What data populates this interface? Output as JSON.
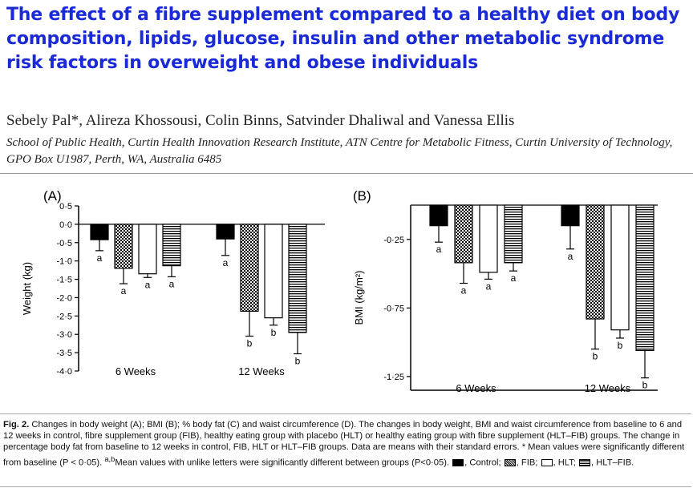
{
  "paper": {
    "title": "The effect of a fibre supplement compared to a healthy diet on body composition, lipids, glucose, insulin and other metabolic syndrome risk factors in overweight and obese individuals",
    "authors": "Sebely Pal*, Alireza Khossousi, Colin Binns, Satvinder Dhaliwal and Vanessa Ellis",
    "affiliation": "School of Public Health, Curtin Health Innovation Research Institute, ATN Centre for Metabolic Fitness, Curtin University of Technology, GPO Box U1987, Perth, WA, Australia 6485"
  },
  "colors": {
    "title": "#1a2ad6",
    "bar_outline": "#000000"
  },
  "chart_data": [
    {
      "panel_label": "(A)",
      "type": "bar",
      "ylabel": "Weight (kg)",
      "xlabel": "",
      "categories": [
        "6 Weeks",
        "12 Weeks"
      ],
      "ylim": [
        -4.0,
        0.5
      ],
      "yticks": [
        "0·5",
        "0·0",
        "-0·5",
        "-1·0",
        "-1·5",
        "-2·0",
        "-2·5",
        "-3·0",
        "-3·5",
        "-4·0"
      ],
      "ytick_values": [
        0.5,
        0.0,
        -0.5,
        -1.0,
        -1.5,
        -2.0,
        -2.5,
        -3.0,
        -3.5,
        -4.0
      ],
      "series": [
        {
          "name": "Control",
          "pattern": "solid",
          "values": [
            -0.42,
            -0.4
          ],
          "errors": [
            0.3,
            0.45
          ],
          "letters": [
            "a",
            "a"
          ]
        },
        {
          "name": "FIB",
          "pattern": "checker",
          "values": [
            -1.2,
            -2.37
          ],
          "errors": [
            0.42,
            0.68
          ],
          "letters": [
            "a",
            "b"
          ]
        },
        {
          "name": "HLT",
          "pattern": "white",
          "values": [
            -1.35,
            -2.55
          ],
          "errors": [
            0.1,
            0.2
          ],
          "letters": [
            "a",
            "b"
          ]
        },
        {
          "name": "HLT-FIB",
          "pattern": "hstripe",
          "values": [
            -1.13,
            -2.95
          ],
          "errors": [
            0.3,
            0.58
          ],
          "letters": [
            "a",
            "b"
          ]
        }
      ],
      "grid": false
    },
    {
      "panel_label": "(B)",
      "type": "bar",
      "ylabel": "BMI (kg/m²)",
      "xlabel": "",
      "categories": [
        "6 Weeks",
        "12 Weeks"
      ],
      "ylim": [
        -1.35,
        0.0
      ],
      "yticks": [
        "-0·25",
        "-0·75",
        "-1·25"
      ],
      "ytick_values": [
        -0.25,
        -0.75,
        -1.25
      ],
      "series": [
        {
          "name": "Control",
          "pattern": "solid",
          "values": [
            -0.15,
            -0.15
          ],
          "errors": [
            0.12,
            0.17
          ],
          "letters": [
            "a",
            "a"
          ]
        },
        {
          "name": "FIB",
          "pattern": "checker",
          "values": [
            -0.42,
            -0.83
          ],
          "errors": [
            0.15,
            0.22
          ],
          "letters": [
            "a",
            "b"
          ]
        },
        {
          "name": "HLT",
          "pattern": "white",
          "values": [
            -0.49,
            -0.91
          ],
          "errors": [
            0.05,
            0.06
          ],
          "letters": [
            "a",
            "b"
          ]
        },
        {
          "name": "HLT-FIB",
          "pattern": "hstripe",
          "values": [
            -0.42,
            -1.06
          ],
          "errors": [
            0.06,
            0.2
          ],
          "letters": [
            "a",
            "b"
          ]
        }
      ],
      "grid": false
    }
  ],
  "caption": {
    "fig_label": "Fig. 2.",
    "text1": " Changes in body weight (A); BMI (B); % body fat (C) and waist circumference (D). The changes in body weight, BMI and waist circumference from baseline to 6 and 12 weeks in control, fibre supplement group (FIB), healthy eating group with placebo (HLT) or healthy eating group with fibre supplement (HLT–FIB) groups. The change in percentage body fat from baseline to 12 weeks in control, FIB, HLT or HLT–FIB groups. Data are means with their standard errors. * Mean values were significantly different from baseline (P < 0·05). ",
    "sup": "a,b",
    "text2": "Mean values with unlike letters were significantly different between groups (P<0·05). ",
    "legend": [
      {
        "pattern": "solid",
        "label": ", Control;"
      },
      {
        "pattern": "check",
        "label": ", FIB;"
      },
      {
        "pattern": "white",
        "label": ", HLT;"
      },
      {
        "pattern": "stripe",
        "label": ", HLT–FIB."
      }
    ]
  }
}
